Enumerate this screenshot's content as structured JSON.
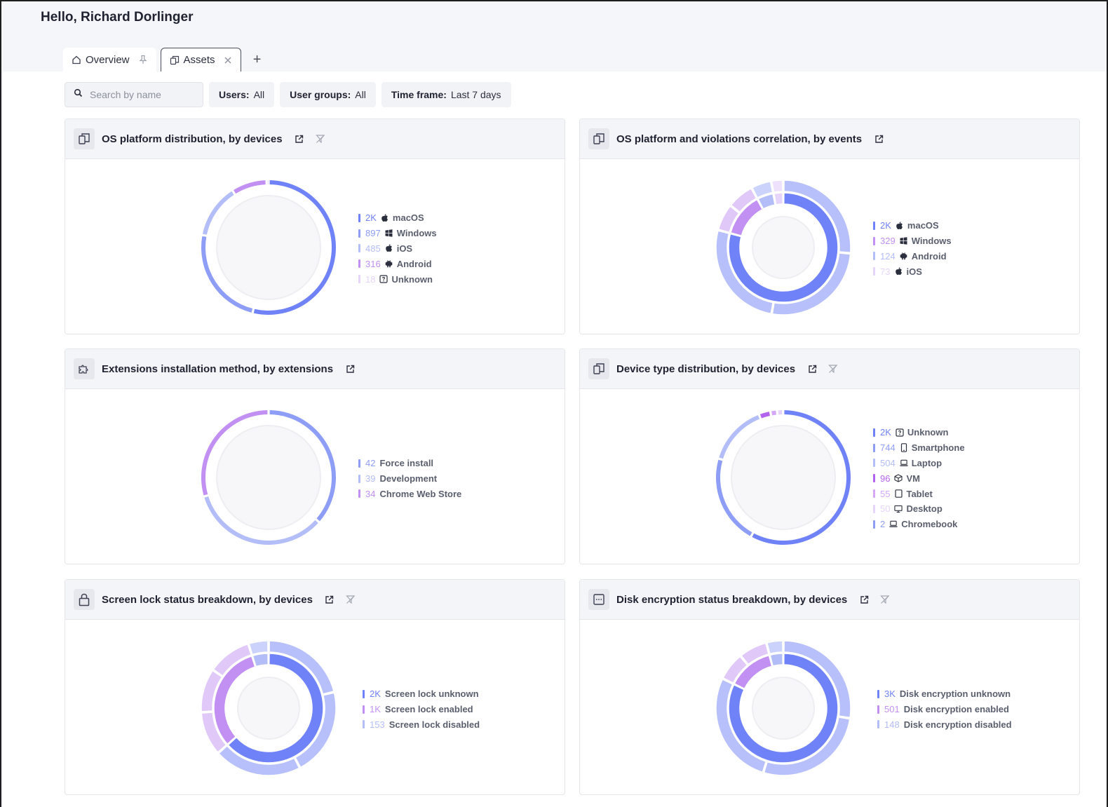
{
  "header": {
    "greeting": "Hello, Richard Dorlinger",
    "tabs": [
      {
        "label": "Overview",
        "trail": "pin"
      },
      {
        "label": "Assets",
        "trail": "close"
      }
    ],
    "add_tab_label": "+"
  },
  "filters": {
    "search_placeholder": "Search by name",
    "users": {
      "key": "Users:",
      "value": "All"
    },
    "user_groups": {
      "key": "User groups:",
      "value": "All"
    },
    "time_frame": {
      "key": "Time frame:",
      "value": "Last 7 days"
    }
  },
  "colors": {
    "accent_blue": "#7082f7",
    "mid_blue": "#8e9df6",
    "light_blue": "#b3bdf8",
    "purple": "#c190f2",
    "light_purple": "#e1ccf8",
    "violet": "#b364ee"
  },
  "cards": [
    {
      "title": "OS platform distribution, by devices",
      "icon": "devices-icon",
      "filter": true,
      "legend": [
        {
          "value": "2K",
          "icon": "apple-icon",
          "label": "macOS",
          "color": "#7082f7"
        },
        {
          "value": "897",
          "icon": "windows-icon",
          "label": "Windows",
          "color": "#8e9df6"
        },
        {
          "value": "485",
          "icon": "apple-icon",
          "label": "iOS",
          "color": "#b3bdf8"
        },
        {
          "value": "316",
          "icon": "android-icon",
          "label": "Android",
          "color": "#c190f2"
        },
        {
          "value": "18",
          "icon": "unknown-icon",
          "label": "Unknown",
          "color": "#e6d4fa"
        }
      ]
    },
    {
      "title": "OS platform and violations correlation, by events",
      "icon": "devices-icon",
      "filter": false,
      "legend": [
        {
          "value": "2K",
          "icon": "apple-icon",
          "label": "macOS",
          "color": "#7082f7"
        },
        {
          "value": "329",
          "icon": "windows-icon",
          "label": "Windows",
          "color": "#c190f2"
        },
        {
          "value": "124",
          "icon": "android-icon",
          "label": "Android",
          "color": "#b3bdf8"
        },
        {
          "value": "73",
          "icon": "apple-icon",
          "label": "iOS",
          "color": "#e6d4fa"
        }
      ]
    },
    {
      "title": "Extensions installation method, by extensions",
      "icon": "puzzle-icon",
      "filter": false,
      "legend": [
        {
          "value": "42",
          "icon": "",
          "label": "Force install",
          "color": "#8e9df6"
        },
        {
          "value": "39",
          "icon": "",
          "label": "Development",
          "color": "#b3bdf8"
        },
        {
          "value": "34",
          "icon": "",
          "label": "Chrome Web Store",
          "color": "#c190f2"
        }
      ]
    },
    {
      "title": "Device type distribution, by devices",
      "icon": "devices-icon",
      "filter": true,
      "legend": [
        {
          "value": "2K",
          "icon": "unknown-icon",
          "label": "Unknown",
          "color": "#7082f7"
        },
        {
          "value": "744",
          "icon": "smartphone-icon",
          "label": "Smartphone",
          "color": "#8e9df6"
        },
        {
          "value": "504",
          "icon": "laptop-icon",
          "label": "Laptop",
          "color": "#b3bdf8"
        },
        {
          "value": "96",
          "icon": "cube-icon",
          "label": "VM",
          "color": "#b364ee"
        },
        {
          "value": "55",
          "icon": "tablet-icon",
          "label": "Tablet",
          "color": "#d4a8f5"
        },
        {
          "value": "50",
          "icon": "desktop-icon",
          "label": "Desktop",
          "color": "#e6d4fa"
        },
        {
          "value": "2",
          "icon": "laptop-icon",
          "label": "Chromebook",
          "color": "#8e9df6"
        }
      ]
    },
    {
      "title": "Screen lock status breakdown, by devices",
      "icon": "lock-icon",
      "filter": true,
      "legend": [
        {
          "value": "2K",
          "icon": "",
          "label": "Screen lock unknown",
          "color": "#7082f7"
        },
        {
          "value": "1K",
          "icon": "",
          "label": "Screen lock enabled",
          "color": "#c190f2"
        },
        {
          "value": "153",
          "icon": "",
          "label": "Screen lock disabled",
          "color": "#b3bdf8"
        }
      ]
    },
    {
      "title": "Disk encryption status breakdown, by devices",
      "icon": "disk-icon",
      "filter": true,
      "legend": [
        {
          "value": "3K",
          "icon": "",
          "label": "Disk encryption unknown",
          "color": "#7082f7"
        },
        {
          "value": "501",
          "icon": "",
          "label": "Disk encryption enabled",
          "color": "#c190f2"
        },
        {
          "value": "148",
          "icon": "",
          "label": "Disk encryption disabled",
          "color": "#b3bdf8"
        }
      ]
    }
  ],
  "chart_data": [
    {
      "type": "pie",
      "title": "OS platform distribution, by devices",
      "categories": [
        "macOS",
        "Windows",
        "iOS",
        "Android",
        "Unknown"
      ],
      "values": [
        2000,
        897,
        485,
        316,
        18
      ]
    },
    {
      "type": "pie",
      "title": "OS platform and violations correlation, by events",
      "categories": [
        "macOS",
        "Windows",
        "Android",
        "iOS"
      ],
      "values": [
        2000,
        329,
        124,
        73
      ]
    },
    {
      "type": "pie",
      "title": "Extensions installation method, by extensions",
      "categories": [
        "Force install",
        "Development",
        "Chrome Web Store"
      ],
      "values": [
        42,
        39,
        34
      ]
    },
    {
      "type": "pie",
      "title": "Device type distribution, by devices",
      "categories": [
        "Unknown",
        "Smartphone",
        "Laptop",
        "VM",
        "Tablet",
        "Desktop",
        "Chromebook"
      ],
      "values": [
        2000,
        744,
        504,
        96,
        55,
        50,
        2
      ]
    },
    {
      "type": "pie",
      "title": "Screen lock status breakdown, by devices",
      "categories": [
        "Screen lock unknown",
        "Screen lock enabled",
        "Screen lock disabled"
      ],
      "values": [
        2000,
        1000,
        153
      ]
    },
    {
      "type": "pie",
      "title": "Disk encryption status breakdown, by devices",
      "categories": [
        "Disk encryption unknown",
        "Disk encryption enabled",
        "Disk encryption disabled"
      ],
      "values": [
        3000,
        501,
        148
      ]
    }
  ]
}
